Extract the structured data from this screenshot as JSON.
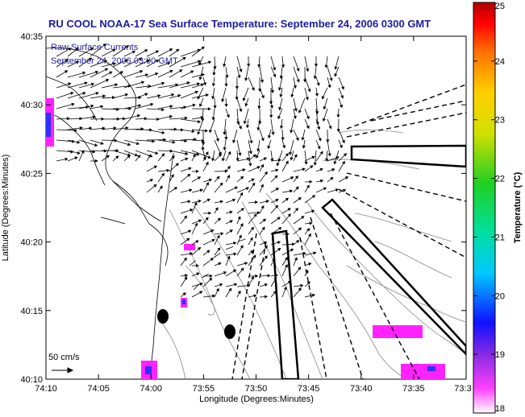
{
  "title": "RU COOL  NOAA-17  Sea Surface Temperature:  September 24, 2006 0300 GMT",
  "legend": {
    "line1": "Raw Surface Currents",
    "line2": "September 24, 2006 03:00 GMT"
  },
  "scale_label": "50 cm/s",
  "axes": {
    "xlabel": "Longitude (Degrees:Minutes)",
    "ylabel": "Latitude (Degrees:Minutes)",
    "xticks": [
      "74:10",
      "74:05",
      "74:00",
      "73:55",
      "73:50",
      "73:45",
      "73:40",
      "73:35",
      "73:3"
    ],
    "yticks": [
      "40:35",
      "40:30",
      "40:25",
      "40:20",
      "40:15",
      "40:10"
    ]
  },
  "colorbar": {
    "label": "Temperature (°C)",
    "ticks": [
      "25",
      "24",
      "23",
      "22",
      "21",
      "20",
      "19",
      "18"
    ],
    "min": 18,
    "max": 25
  },
  "colors": {
    "title": "#1c1c9c",
    "coast": "#000000",
    "contour": "#888888",
    "sst_warm": "#ff22ff",
    "sst_cool": "#3030ff"
  }
}
